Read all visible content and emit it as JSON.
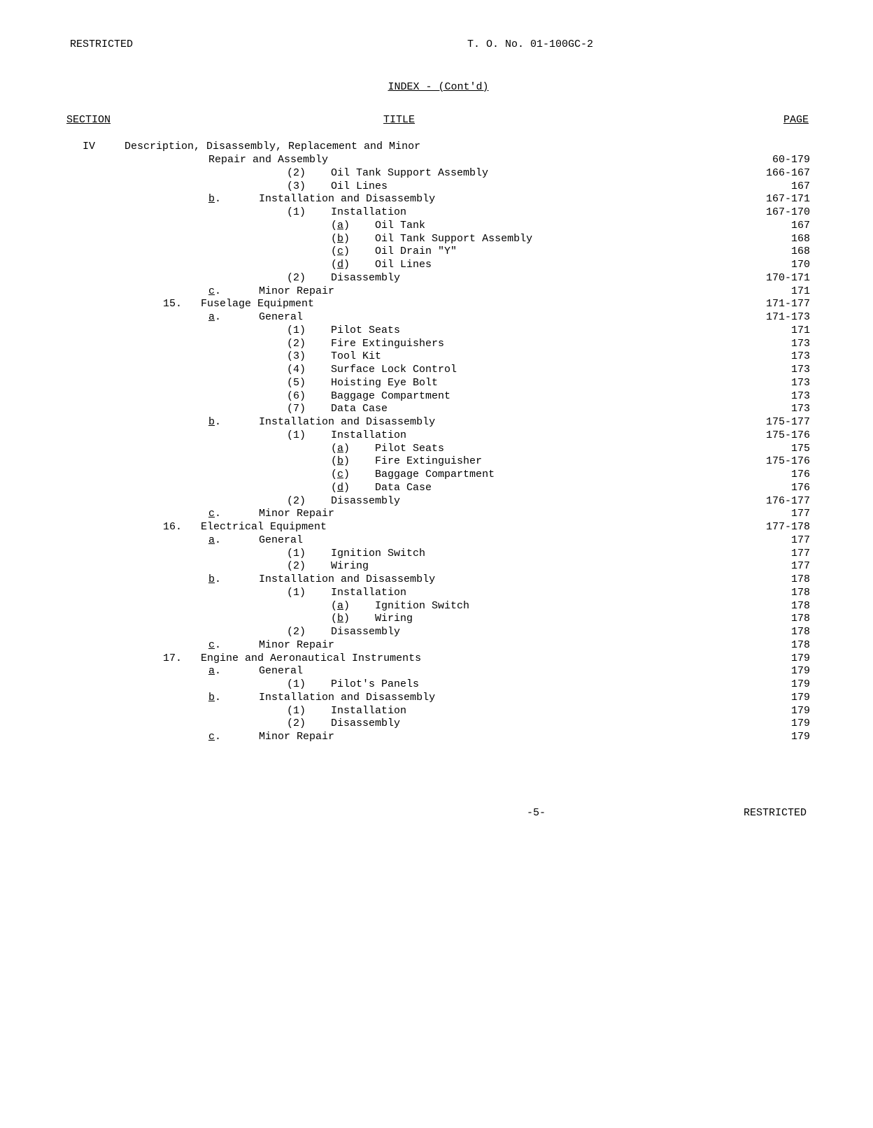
{
  "header": {
    "left": "RESTRICTED",
    "center": "T. O. No. 01-100GC-2"
  },
  "index_title": "INDEX - (Cont'd)",
  "columns": {
    "section": "SECTION",
    "title": "TITLE",
    "page": "PAGE"
  },
  "section_roman": "IV",
  "rows": [
    {
      "indent": "i0",
      "text": "Description, Disassembly, Replacement and Minor",
      "page": ""
    },
    {
      "indent": "i2",
      "text": "Repair and Assembly",
      "page": "60-179"
    },
    {
      "indent": "i4",
      "text": "(2)    Oil Tank Support Assembly",
      "page": "166-167"
    },
    {
      "indent": "i4",
      "text": "(3)    Oil Lines",
      "page": "167"
    },
    {
      "indent": "i2",
      "prefix": "b",
      "prefix_under": true,
      "text": ".      Installation and Disassembly",
      "page": "167-171"
    },
    {
      "indent": "i4",
      "text": "(1)    Installation",
      "page": "167-170"
    },
    {
      "indent": "i5",
      "text": "(",
      "u": "a",
      "after": ")    Oil Tank",
      "page": "167"
    },
    {
      "indent": "i5",
      "text": "(",
      "u": "b",
      "after": ")    Oil Tank Support Assembly",
      "page": "168"
    },
    {
      "indent": "i5",
      "text": "(",
      "u": "c",
      "after": ")    Oil Drain \"Y\"",
      "page": "168"
    },
    {
      "indent": "i5",
      "text": "(",
      "u": "d",
      "after": ")    Oil Lines",
      "page": "170"
    },
    {
      "indent": "i4",
      "text": "(2)    Disassembly",
      "page": "170-171"
    },
    {
      "indent": "i2",
      "prefix": "c",
      "prefix_under": true,
      "text": ".      Minor Repair",
      "page": "171"
    },
    {
      "indent": "i1",
      "num": "15.",
      "text": "   Fuselage Equipment",
      "page": "171-177"
    },
    {
      "indent": "i2",
      "prefix": "a",
      "prefix_under": true,
      "text": ".      General",
      "page": "171-173"
    },
    {
      "indent": "i4",
      "text": "(1)    Pilot Seats",
      "page": "171"
    },
    {
      "indent": "i4",
      "text": "(2)    Fire Extinguishers",
      "page": "173"
    },
    {
      "indent": "i4",
      "text": "(3)    Tool Kit",
      "page": "173"
    },
    {
      "indent": "i4",
      "text": "(4)    Surface Lock Control",
      "page": "173"
    },
    {
      "indent": "i4",
      "text": "(5)    Hoisting Eye Bolt",
      "page": "173"
    },
    {
      "indent": "i4",
      "text": "(6)    Baggage Compartment",
      "page": "173"
    },
    {
      "indent": "i4",
      "text": "(7)    Data Case",
      "page": "173"
    },
    {
      "indent": "i2",
      "prefix": "b",
      "prefix_under": true,
      "text": ".      Installation and Disassembly",
      "page": "175-177"
    },
    {
      "indent": "i4",
      "text": "(1)    Installation",
      "page": "175-176"
    },
    {
      "indent": "i5",
      "text": "(",
      "u": "a",
      "after": ")    Pilot Seats",
      "page": "175"
    },
    {
      "indent": "i5",
      "text": "(",
      "u": "b",
      "after": ")    Fire Extinguisher",
      "page": "175-176"
    },
    {
      "indent": "i5",
      "text": "(",
      "u": "c",
      "after": ")    Baggage Compartment",
      "page": "176"
    },
    {
      "indent": "i5",
      "text": "(",
      "u": "d",
      "after": ")    Data Case",
      "page": "176"
    },
    {
      "indent": "i4",
      "text": "(2)    Disassembly",
      "page": "176-177"
    },
    {
      "indent": "i2",
      "prefix": "c",
      "prefix_under": true,
      "text": ".      Minor Repair",
      "page": "177"
    },
    {
      "indent": "i1",
      "num": "16.",
      "text": "   Electrical Equipment",
      "page": "177-178"
    },
    {
      "indent": "i2",
      "prefix": "a",
      "prefix_under": true,
      "text": ".      General",
      "page": "177"
    },
    {
      "indent": "i4",
      "text": "(1)    Ignition Switch",
      "page": "177"
    },
    {
      "indent": "i4",
      "text": "(2)    Wiring",
      "page": "177"
    },
    {
      "indent": "i2",
      "prefix": "b",
      "prefix_under": true,
      "text": ".      Installation and Disassembly",
      "page": "178"
    },
    {
      "indent": "i4",
      "text": "(1)    Installation",
      "page": "178"
    },
    {
      "indent": "i5",
      "text": "(",
      "u": "a",
      "after": ")    Ignition Switch",
      "page": "178"
    },
    {
      "indent": "i5",
      "text": "(",
      "u": "b",
      "after": ")    Wiring",
      "page": "178"
    },
    {
      "indent": "i4",
      "text": "(2)    Disassembly",
      "page": "178"
    },
    {
      "indent": "i2",
      "prefix": "c",
      "prefix_under": true,
      "text": ".      Minor Repair",
      "page": "178"
    },
    {
      "indent": "i1",
      "num": "17.",
      "text": "   Engine and Aeronautical Instruments",
      "page": "179"
    },
    {
      "indent": "i2",
      "prefix": "a",
      "prefix_under": true,
      "text": ".      General",
      "page": "179"
    },
    {
      "indent": "i4",
      "text": "(1)    Pilot's Panels",
      "page": "179"
    },
    {
      "indent": "i2",
      "prefix": "b",
      "prefix_under": true,
      "text": ".      Installation and Disassembly",
      "page": "179"
    },
    {
      "indent": "i4",
      "text": "(1)    Installation",
      "page": "179"
    },
    {
      "indent": "i4",
      "text": "(2)    Disassembly",
      "page": "179"
    },
    {
      "indent": "i2",
      "prefix": "c",
      "prefix_under": true,
      "text": ".      Minor Repair",
      "page": "179"
    }
  ],
  "footer": {
    "center": "-5-",
    "right": "RESTRICTED"
  }
}
